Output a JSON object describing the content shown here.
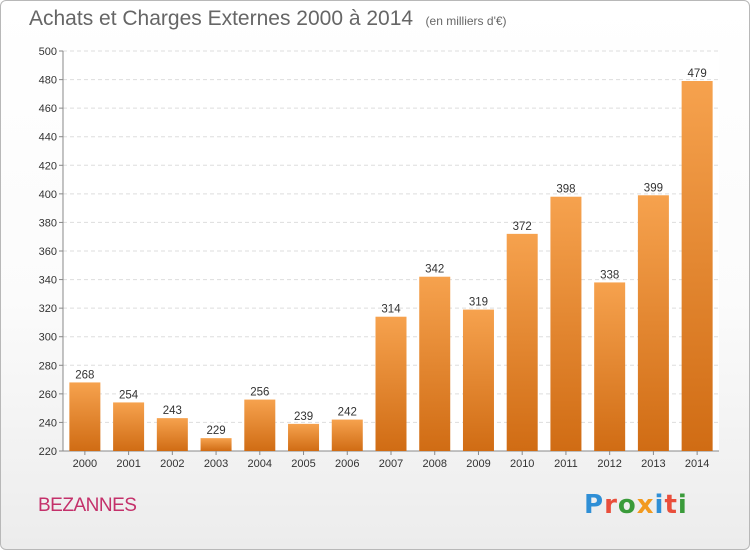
{
  "page": {
    "title": "Achats et Charges Externes 2000 à 2014",
    "subtitle": "(en milliers d'€)",
    "commune": "BEZANNES",
    "brand": {
      "letters": [
        "P",
        "r",
        "o",
        "x",
        "i",
        "t",
        "i"
      ],
      "colors": [
        "#2f8fd6",
        "#e94e3b",
        "#3a9b3a",
        "#f29a1f",
        "#2f8fd6",
        "#e94e3b",
        "#3a9b3a"
      ]
    },
    "commune_color": "#c4306a"
  },
  "chart_data": {
    "type": "bar",
    "title": "Achats et Charges Externes 2000 à 2014",
    "subtitle": "(en milliers d'€)",
    "categories": [
      "2000",
      "2001",
      "2002",
      "2003",
      "2004",
      "2005",
      "2006",
      "2007",
      "2008",
      "2009",
      "2010",
      "2011",
      "2012",
      "2013",
      "2014"
    ],
    "values": [
      268,
      254,
      243,
      229,
      256,
      239,
      242,
      314,
      342,
      319,
      372,
      398,
      338,
      399,
      479
    ],
    "ylim": [
      220,
      500
    ],
    "yticks": [
      220,
      240,
      260,
      280,
      300,
      320,
      340,
      360,
      380,
      400,
      420,
      440,
      460,
      480,
      500
    ],
    "grid": true,
    "bar_color_top": "#f6a24e",
    "bar_color_bottom": "#d06c14"
  }
}
